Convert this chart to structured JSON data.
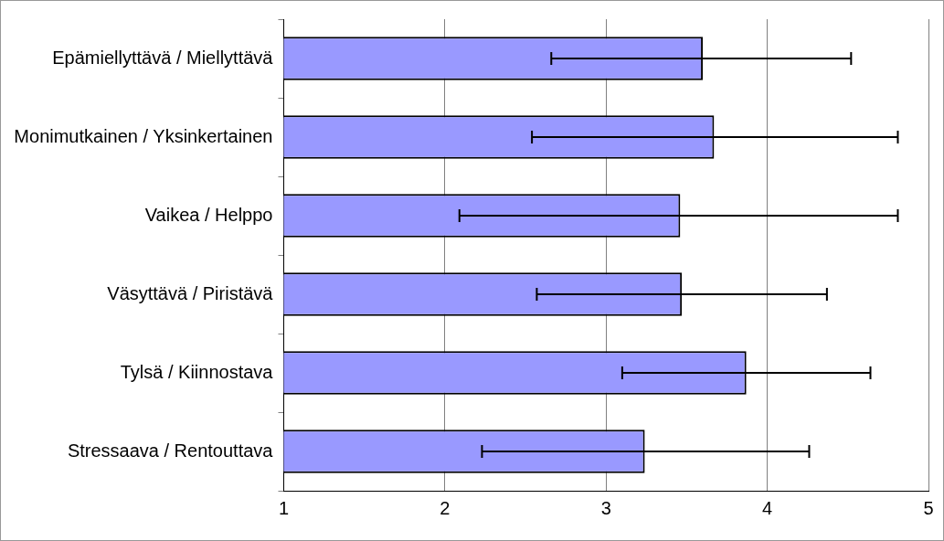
{
  "chart_data": {
    "type": "bar",
    "orientation": "horizontal",
    "categories": [
      "Epämiellyttävä / Miellyttävä",
      "Monimutkainen / Yksinkertainen",
      "Vaikea / Helppo",
      "Väsyttävä / Piristävä",
      "Tylsä / Kiinnostava",
      "Stressaava / Rentouttava"
    ],
    "values": [
      3.6,
      3.67,
      3.46,
      3.47,
      3.87,
      3.24
    ],
    "errors": [
      [
        2.66,
        4.52
      ],
      [
        2.54,
        4.81
      ],
      [
        2.09,
        4.81
      ],
      [
        2.57,
        4.37
      ],
      [
        3.1,
        4.64
      ],
      [
        2.23,
        4.26
      ]
    ],
    "color": "#9999ff",
    "xlim": [
      1,
      5
    ],
    "xticks": [
      1,
      2,
      3,
      4,
      5
    ],
    "grid": "x",
    "legend": false
  }
}
